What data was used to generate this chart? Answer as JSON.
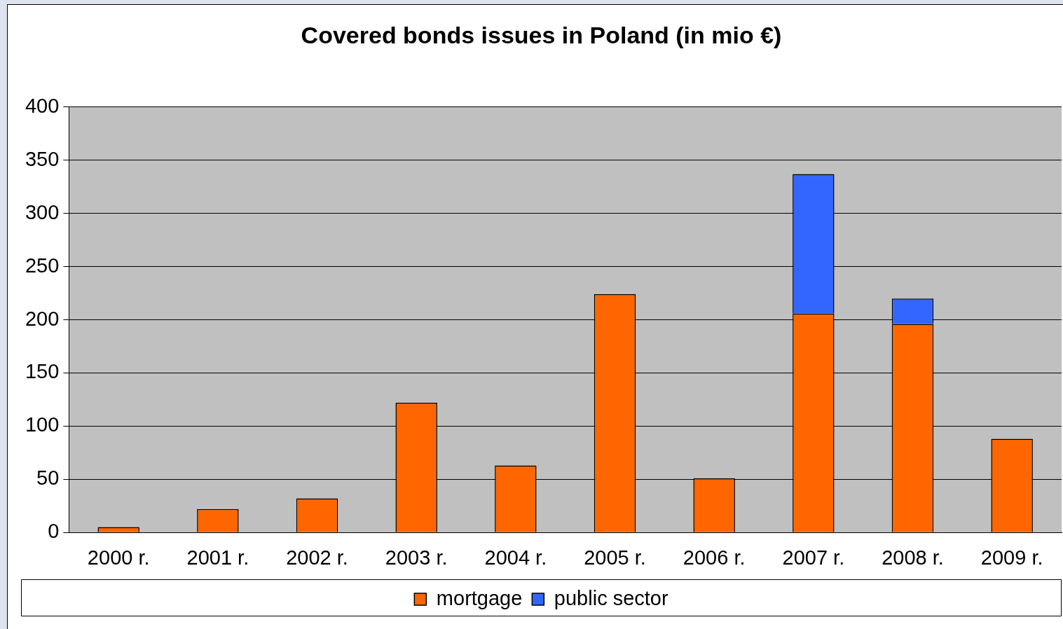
{
  "chart_data": {
    "type": "bar",
    "title": "Covered bonds issues in Poland (in mio €)",
    "categories": [
      "2000 r.",
      "2001 r.",
      "2002 r.",
      "2003 r.",
      "2004 r.",
      "2005 r.",
      "2006 r.",
      "2007 r.",
      "2008 r.",
      "2009 r."
    ],
    "series": [
      {
        "name": "mortgage",
        "color": "#ff6600",
        "values": [
          5,
          22,
          32,
          122,
          63,
          224,
          51,
          206,
          196,
          88
        ]
      },
      {
        "name": "public sector",
        "color": "#3366ff",
        "values": [
          null,
          null,
          null,
          null,
          null,
          null,
          null,
          131,
          24,
          null
        ]
      }
    ],
    "stacked": true,
    "ylim": [
      0,
      400
    ],
    "yticks": [
      0,
      50,
      100,
      150,
      200,
      250,
      300,
      350,
      400
    ],
    "grid": "y",
    "legend": "bottom"
  }
}
